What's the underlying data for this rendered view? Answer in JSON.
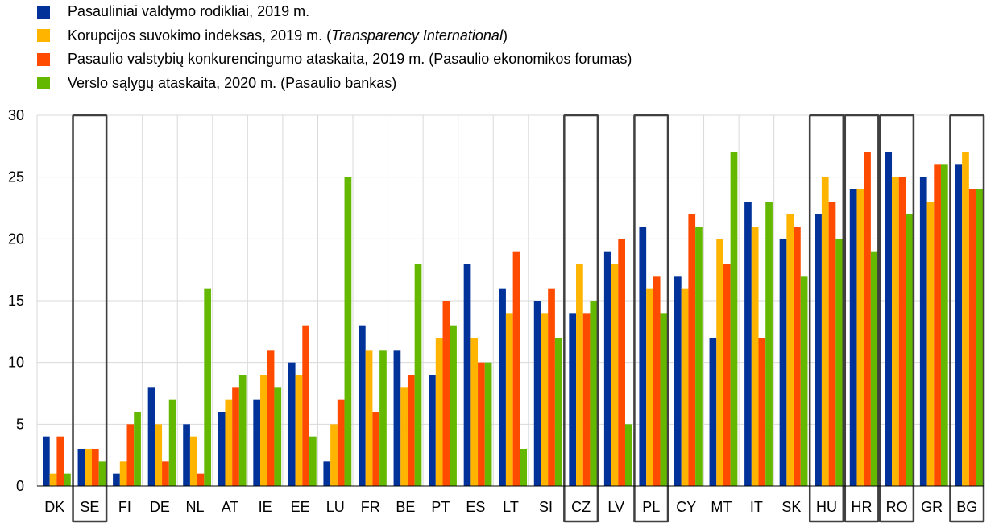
{
  "legend": [
    {
      "pre": "Pasauliniai valdymo rodikliai, 2019 m.",
      "em": "",
      "post": "",
      "color": "#003299"
    },
    {
      "pre": "Korupcijos suvokimo indeksas, 2019 m. (",
      "em": "Transparency International",
      "post": ")",
      "color": "#FFB400"
    },
    {
      "pre": "Pasaulio valstybių konkurencingumo ataskaita, 2019 m. (Pasaulio ekonomikos forumas)",
      "em": "",
      "post": "",
      "color": "#FF4B00"
    },
    {
      "pre": "Verslo sąlygų ataskaita, 2020 m. (Pasaulio bankas)",
      "em": "",
      "post": "",
      "color": "#65B800"
    }
  ],
  "chart_data": {
    "type": "bar",
    "categories": [
      "DK",
      "SE",
      "FI",
      "DE",
      "NL",
      "AT",
      "IE",
      "EE",
      "LU",
      "FR",
      "BE",
      "PT",
      "ES",
      "LT",
      "SI",
      "CZ",
      "LV",
      "PL",
      "CY",
      "MT",
      "IT",
      "SK",
      "HU",
      "HR",
      "RO",
      "GR",
      "BG"
    ],
    "series": [
      {
        "name": "Pasauliniai valdymo rodikliai, 2019 m.",
        "color": "#003299",
        "values": [
          4,
          3,
          1,
          8,
          5,
          6,
          7,
          10,
          2,
          13,
          11,
          9,
          18,
          16,
          15,
          14,
          19,
          21,
          17,
          12,
          23,
          20,
          22,
          24,
          27,
          25,
          26
        ]
      },
      {
        "name": "Korupcijos suvokimo indeksas, 2019 m. (Transparency International)",
        "color": "#FFB400",
        "values": [
          1,
          3,
          2,
          5,
          4,
          7,
          9,
          9,
          5,
          11,
          8,
          12,
          12,
          14,
          14,
          18,
          18,
          16,
          16,
          20,
          21,
          22,
          25,
          24,
          25,
          23,
          27
        ]
      },
      {
        "name": "Pasaulio valstybių konkurencingumo ataskaita, 2019 m. (Pasaulio ekonomikos forumas)",
        "color": "#FF4B00",
        "values": [
          4,
          3,
          5,
          2,
          1,
          8,
          11,
          13,
          7,
          6,
          9,
          15,
          10,
          19,
          16,
          14,
          20,
          17,
          22,
          18,
          12,
          21,
          23,
          27,
          25,
          26,
          24
        ]
      },
      {
        "name": "Verslo sąlygų ataskaita, 2020 m. (Pasaulio bankas)",
        "color": "#65B800",
        "values": [
          1,
          2,
          6,
          7,
          16,
          9,
          8,
          4,
          25,
          11,
          18,
          13,
          10,
          3,
          12,
          15,
          5,
          14,
          21,
          27,
          23,
          17,
          20,
          19,
          22,
          26,
          24
        ]
      }
    ],
    "y_ticks": [
      0,
      5,
      10,
      15,
      20,
      25,
      30
    ],
    "ylim": [
      0,
      30
    ],
    "grid": true,
    "highlighted": [
      "SE",
      "CZ",
      "PL",
      "HU",
      "HR",
      "RO",
      "BG"
    ]
  }
}
